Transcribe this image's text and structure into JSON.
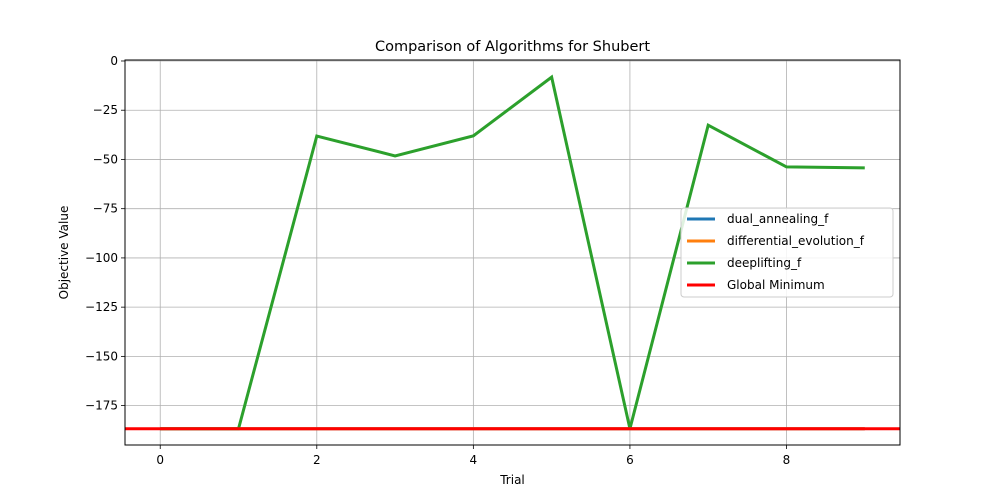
{
  "chart_data": {
    "type": "line",
    "title": "Comparison of Algorithms for Shubert",
    "xlabel": "Trial",
    "ylabel": "Objective Value",
    "xlim": [
      -0.45,
      9.45
    ],
    "ylim": [
      -195,
      0.5
    ],
    "xticks": [
      0,
      2,
      4,
      6,
      8
    ],
    "yticks": [
      0,
      -25,
      -50,
      -75,
      -100,
      -125,
      -150,
      -175
    ],
    "ytick_labels": [
      "0",
      "−25",
      "−50",
      "−75",
      "−100",
      "−125",
      "−150",
      "−175"
    ],
    "grid": true,
    "legend_position": "center-right",
    "x": [
      0,
      1,
      2,
      3,
      4,
      5,
      6,
      7,
      8,
      9
    ],
    "series": [
      {
        "name": "dual_annealing_f",
        "color": "#1f77b4",
        "values": [
          -186.73,
          -186.73,
          -186.73,
          -186.73,
          -186.73,
          -186.73,
          -186.73,
          -186.73,
          -186.73,
          -186.73
        ]
      },
      {
        "name": "differential_evolution_f",
        "color": "#ff7f0e",
        "values": [
          -186.73,
          -186.73,
          -186.73,
          -186.73,
          -186.73,
          -186.73,
          -186.73,
          -186.73,
          -186.73,
          -186.73
        ]
      },
      {
        "name": "deeplifting_f",
        "color": "#2ca02c",
        "values": [
          -186.73,
          -186.73,
          -38.1,
          -48.2,
          -38.0,
          -8.2,
          -186.73,
          -32.6,
          -53.8,
          -54.3
        ]
      }
    ],
    "hline": {
      "name": "Global Minimum",
      "color": "#ff0000",
      "value": -186.73
    }
  }
}
